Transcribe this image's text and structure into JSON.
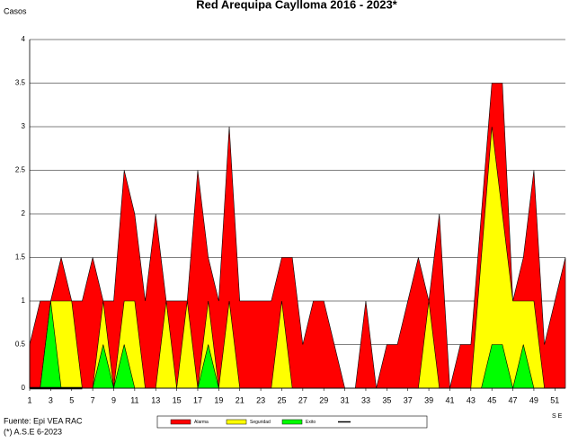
{
  "chart_data": {
    "type": "area",
    "title": "Red Arequipa Caylloma 2016 - 2023*",
    "ylabel": "Casos",
    "xlabel": "S E",
    "footnotes": [
      "Fuente: Epi VEA RAC",
      "(*) A.S.E 6-2023"
    ],
    "x": [
      1,
      2,
      3,
      4,
      5,
      6,
      7,
      8,
      9,
      10,
      11,
      12,
      13,
      14,
      15,
      16,
      17,
      18,
      19,
      20,
      21,
      22,
      23,
      24,
      25,
      26,
      27,
      28,
      29,
      30,
      31,
      32,
      33,
      34,
      35,
      36,
      37,
      38,
      39,
      40,
      41,
      42,
      43,
      44,
      45,
      46,
      47,
      48,
      49,
      50,
      51,
      52
    ],
    "xlim": [
      1,
      52
    ],
    "xticks": [
      1,
      3,
      5,
      7,
      9,
      11,
      13,
      15,
      17,
      19,
      21,
      23,
      25,
      27,
      29,
      31,
      33,
      35,
      37,
      39,
      41,
      43,
      45,
      47,
      49,
      51
    ],
    "ylim": [
      0,
      4
    ],
    "yticks": [
      0,
      0.5,
      1,
      1.5,
      2,
      2.5,
      3,
      3.5,
      4
    ],
    "grid": true,
    "series": [
      {
        "name": "Alarma",
        "color": "#ff0000",
        "values": [
          0.5,
          1,
          1,
          1.5,
          1,
          1,
          1.5,
          1,
          1,
          2.5,
          2,
          1,
          2,
          1,
          1,
          1,
          2.5,
          1.5,
          1,
          3,
          1,
          1,
          1,
          1,
          1.5,
          1.5,
          0.5,
          1,
          1,
          0.5,
          0,
          0,
          1,
          0,
          0.5,
          0.5,
          1,
          1.5,
          1,
          2,
          0,
          0.5,
          0.5,
          2,
          3.5,
          3.5,
          1,
          1.5,
          2.5,
          0.5,
          1,
          1.5
        ]
      },
      {
        "name": "Seguridad",
        "color": "#ffff00",
        "values": [
          0,
          0,
          1,
          1,
          1,
          0,
          0,
          1,
          0,
          1,
          1,
          0,
          0,
          1,
          0,
          1,
          0,
          1,
          0,
          1,
          0,
          0,
          0,
          0,
          1,
          0,
          0,
          0,
          0,
          0,
          0,
          0,
          0,
          0,
          0,
          0,
          0,
          0,
          1,
          0,
          0,
          0,
          0,
          1.5,
          3,
          2,
          1,
          1,
          1,
          0,
          0,
          0
        ]
      },
      {
        "name": "Exito",
        "color": "#00ff00",
        "values": [
          0,
          0,
          1,
          0,
          0,
          0,
          0,
          0.5,
          0,
          0.5,
          0,
          0,
          0,
          0,
          0,
          0,
          0,
          0.5,
          0,
          0,
          0,
          0,
          0,
          0,
          0,
          0,
          0,
          0,
          0,
          0,
          0,
          0,
          0,
          0,
          0,
          0,
          0,
          0,
          0,
          0,
          0,
          0,
          0,
          0,
          0.5,
          0.5,
          0,
          0.5,
          0,
          0,
          0,
          0
        ]
      },
      {
        "color": "#000000",
        "line": true,
        "values": [
          0,
          0,
          0,
          0,
          0,
          0,
          null,
          null,
          null,
          null,
          null,
          null,
          null,
          null,
          null,
          null,
          null,
          null,
          null,
          null,
          null,
          null,
          null,
          null,
          null,
          null,
          null,
          null,
          null,
          null,
          null,
          null,
          null,
          null,
          null,
          null,
          null,
          null,
          null,
          null,
          null,
          null,
          null,
          null,
          null,
          null,
          null,
          null,
          null,
          null,
          null,
          null
        ]
      }
    ]
  }
}
